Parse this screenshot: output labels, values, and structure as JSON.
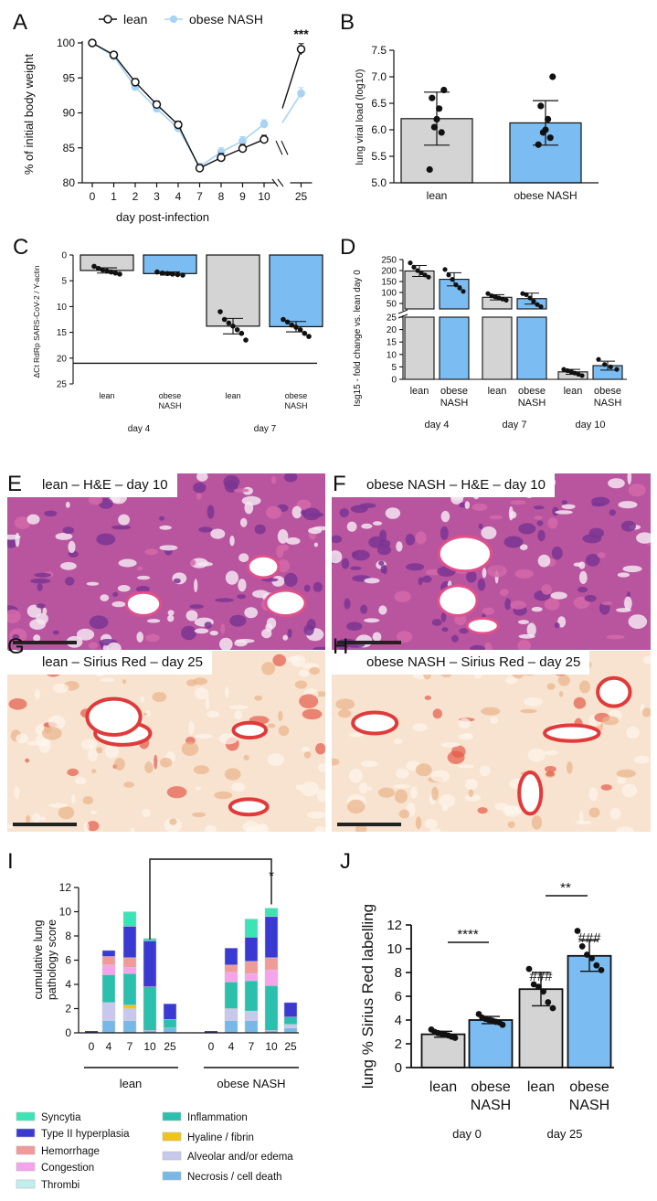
{
  "panel_letters": [
    "A",
    "B",
    "C",
    "D",
    "E",
    "F",
    "G",
    "H",
    "I",
    "J"
  ],
  "colors": {
    "lean": "#d4d4d4",
    "nash": "#7bbdf2",
    "nash_line": "#a8d3f5",
    "axis": "#111111"
  },
  "chart_data": [
    {
      "id": "A",
      "type": "line",
      "ylabel": "% of initial body weight",
      "xlabel": "day post-infection",
      "categories": [
        "0",
        "1",
        "2",
        "3",
        "4",
        "7",
        "8",
        "9",
        "10",
        "25"
      ],
      "ylim": [
        80,
        100
      ],
      "yticks": [
        80,
        85,
        90,
        95,
        100
      ],
      "series": [
        {
          "name": "lean",
          "values": [
            100,
            98.3,
            94.4,
            91.2,
            88.3,
            82.1,
            83.6,
            84.9,
            86.2,
            99.1
          ],
          "err": [
            0.3,
            0.4,
            0.5,
            0.5,
            0.5,
            0.5,
            0.6,
            0.6,
            0.6,
            0.8
          ]
        },
        {
          "name": "obese NASH",
          "values": [
            100,
            98.1,
            93.7,
            90.6,
            87.8,
            82.3,
            84.4,
            86.0,
            88.4,
            92.8
          ],
          "err": [
            0.3,
            0.4,
            0.5,
            0.5,
            0.5,
            0.5,
            0.6,
            0.6,
            0.6,
            0.8
          ]
        }
      ],
      "annotations": [
        "***"
      ]
    },
    {
      "id": "B",
      "type": "bar",
      "ylabel": "lung viral load (log10)",
      "categories": [
        "lean",
        "obese NASH"
      ],
      "values": [
        6.21,
        6.13
      ],
      "err": [
        0.5,
        0.42
      ],
      "points": [
        [
          6.75,
          6.6,
          6.4,
          6.2,
          6.05,
          5.95,
          5.25
        ],
        [
          7.0,
          6.45,
          6.2,
          6.0,
          5.95,
          5.85,
          5.72
        ]
      ],
      "ylim": [
        5.0,
        7.5
      ],
      "yticks": [
        5.0,
        5.5,
        6.0,
        6.5,
        7.0,
        7.5
      ]
    },
    {
      "id": "C",
      "type": "bar",
      "ylabel": "ΔCt RdRp SARS-CoV-2 / Υ-actin",
      "categories": [
        "lean",
        "obese NASH",
        "lean",
        "obese NASH"
      ],
      "groups": [
        "day 4",
        "day 7"
      ],
      "values": [
        3.0,
        3.6,
        13.8,
        13.9
      ],
      "err": [
        0.5,
        0.3,
        1.5,
        1.0
      ],
      "points": [
        [
          2.2,
          2.6,
          2.9,
          3.1,
          3.3,
          3.5,
          3.7
        ],
        [
          3.3,
          3.5,
          3.6,
          3.7,
          3.8,
          3.9
        ],
        [
          11.0,
          12.5,
          13.2,
          13.8,
          14.5,
          15.2,
          16.5
        ],
        [
          12.5,
          13.0,
          13.6,
          14.0,
          14.5,
          15.2,
          15.8
        ]
      ],
      "ylim": [
        0,
        25
      ],
      "yticks": [
        0,
        5,
        10,
        15,
        20,
        25
      ],
      "reference_line": 21,
      "inverted": true
    },
    {
      "id": "D",
      "type": "bar",
      "ylabel": "Isg15 - fold change vs. lean day 0",
      "categories": [
        "lean",
        "obese NASH",
        "lean",
        "obese NASH",
        "lean",
        "obese NASH"
      ],
      "groups": [
        "day 4",
        "day 7",
        "day 10"
      ],
      "values": [
        198,
        160,
        78,
        72,
        3,
        5.5
      ],
      "err": [
        25,
        30,
        12,
        25,
        1,
        1.8
      ],
      "points": [
        [
          235,
          215,
          200,
          190,
          180,
          170
        ],
        [
          205,
          180,
          160,
          135,
          120,
          105
        ],
        [
          95,
          85,
          80,
          75,
          70,
          65
        ],
        [
          95,
          90,
          75,
          60,
          45,
          35
        ],
        [
          4,
          3.5,
          3,
          2.5,
          2,
          1.5
        ],
        [
          8,
          6,
          5,
          4
        ]
      ],
      "yticks_upper": [
        50,
        100,
        150,
        200,
        250
      ],
      "yticks_lower": [
        0,
        5,
        10,
        15,
        20,
        25
      ],
      "ylim_upper": [
        25,
        250
      ],
      "ylim_lower": [
        0,
        25
      ]
    },
    {
      "id": "I",
      "type": "bar",
      "stacked": true,
      "ylabel": "cumulative lung pathology score",
      "groups": [
        "lean",
        "obese NASH"
      ],
      "categories": [
        "0",
        "4",
        "7",
        "10",
        "25",
        "0",
        "4",
        "7",
        "10",
        "25"
      ],
      "ylim": [
        0,
        12
      ],
      "yticks": [
        0,
        2,
        4,
        6,
        8,
        10,
        12
      ],
      "annotations": [
        "*"
      ],
      "series": [
        {
          "name": "Necrosis / cell death",
          "color": "#78b8e8",
          "values": [
            0,
            1.0,
            1.0,
            0.2,
            0.4,
            0.1,
            1.0,
            1.0,
            0.2,
            0.4
          ]
        },
        {
          "name": "Alveolar and/or edema",
          "color": "#c8c8ec",
          "values": [
            0,
            1.5,
            1.0,
            0,
            0,
            0,
            1.0,
            0.8,
            0,
            0.3
          ]
        },
        {
          "name": "Hyaline / fibrin",
          "color": "#f0c419",
          "values": [
            0,
            0,
            0.3,
            0,
            0,
            0,
            0,
            0,
            0,
            0
          ]
        },
        {
          "name": "Inflammation",
          "color": "#2bbfae",
          "values": [
            0,
            2.3,
            2.6,
            3.6,
            0.7,
            0,
            2.2,
            2.5,
            3.7,
            0.6
          ]
        },
        {
          "name": "Thrombi",
          "color": "#bff0ee",
          "values": [
            0,
            0,
            0,
            0,
            0,
            0,
            0,
            0,
            0,
            0
          ]
        },
        {
          "name": "Congestion",
          "color": "#f5a3ec",
          "values": [
            0,
            0.8,
            0.5,
            0,
            0,
            0,
            0.8,
            0.6,
            1.3,
            0
          ]
        },
        {
          "name": "Hemorrhage",
          "color": "#f09a9a",
          "values": [
            0,
            0.7,
            0.8,
            0,
            0,
            0,
            0.6,
            1.0,
            1.0,
            0
          ]
        },
        {
          "name": "Type II hyperplasia",
          "color": "#3a3ad2",
          "values": [
            0,
            0.5,
            2.6,
            3.8,
            1.3,
            0,
            1.4,
            2.0,
            3.4,
            1.2
          ]
        },
        {
          "name": "Syncytia",
          "color": "#3ce3b4",
          "values": [
            0,
            0,
            1.2,
            0.2,
            0,
            0,
            0,
            1.5,
            0.7,
            0
          ]
        }
      ]
    },
    {
      "id": "J",
      "type": "bar",
      "ylabel": "lung % Sirius  Red labelling",
      "categories": [
        "lean",
        "obese NASH",
        "lean",
        "obese NASH"
      ],
      "groups": [
        "day 0",
        "day 25"
      ],
      "values": [
        2.8,
        4.0,
        6.6,
        9.4
      ],
      "err": [
        0.25,
        0.3,
        1.4,
        1.3
      ],
      "points": [
        [
          3.2,
          3.0,
          2.9,
          2.85,
          2.8,
          2.7,
          2.6,
          2.5
        ],
        [
          4.5,
          4.2,
          4.1,
          4.0,
          3.95,
          3.85,
          3.8,
          3.6
        ],
        [
          8.3,
          7.0,
          6.8,
          6.4,
          5.5,
          5.0
        ],
        [
          11.5,
          10.2,
          9.5,
          9.2,
          8.6,
          8.2
        ]
      ],
      "ylim": [
        0,
        12
      ],
      "yticks": [
        0,
        2,
        4,
        6,
        8,
        10,
        12
      ],
      "annotations": [
        "****",
        "**",
        "###",
        "###"
      ]
    }
  ],
  "micrographs": [
    {
      "id": "E",
      "label": "lean – H&E – day 10",
      "stain": "he"
    },
    {
      "id": "F",
      "label": "obese NASH – H&E – day 10",
      "stain": "he"
    },
    {
      "id": "G",
      "label": "lean – Sirius Red – day 25",
      "stain": "sr"
    },
    {
      "id": "H",
      "label": "obese NASH – Sirius Red – day 25",
      "stain": "sr"
    }
  ]
}
